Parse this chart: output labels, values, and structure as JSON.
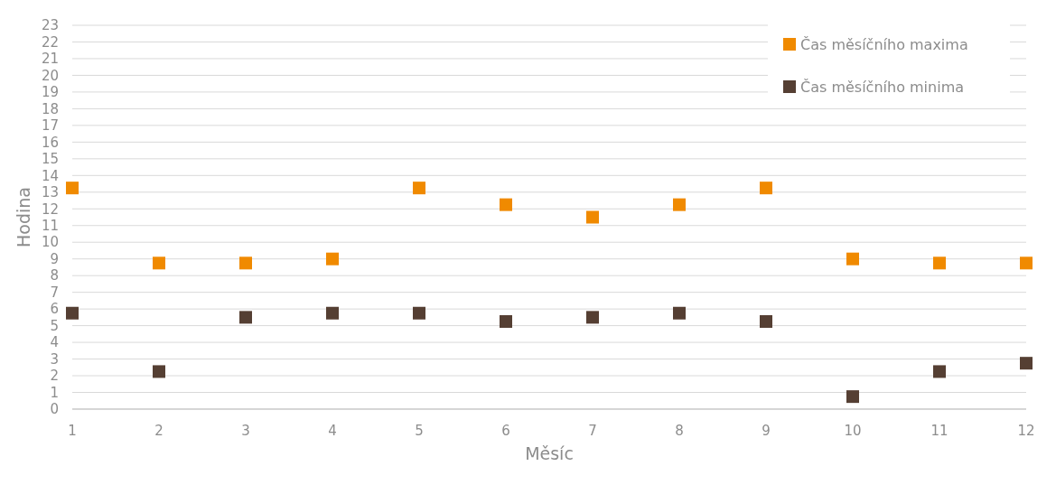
{
  "chart_data": {
    "type": "scatter",
    "xlabel": "Měsíc",
    "ylabel": "Hodina",
    "x": [
      1,
      2,
      3,
      4,
      5,
      6,
      7,
      8,
      9,
      10,
      11,
      12
    ],
    "xlim": [
      1,
      12
    ],
    "xticks": [
      1,
      2,
      3,
      4,
      5,
      6,
      7,
      8,
      9,
      10,
      11,
      12
    ],
    "ylim": [
      0,
      23
    ],
    "yticks": [
      0,
      1,
      2,
      3,
      4,
      5,
      6,
      7,
      8,
      9,
      10,
      11,
      12,
      13,
      14,
      15,
      16,
      17,
      18,
      19,
      20,
      21,
      22,
      23
    ],
    "grid": "y",
    "legend": "top right",
    "marker": "square",
    "series": [
      {
        "name": "Čas měsíčního maxima",
        "color": "#f08a00",
        "values": [
          13.25,
          8.75,
          8.75,
          9,
          13.25,
          12.25,
          11.5,
          12.25,
          13.25,
          9,
          8.75,
          8.75
        ]
      },
      {
        "name": "Čas měsíčního minima",
        "color": "#553f33",
        "values": [
          5.75,
          2.25,
          5.5,
          5.75,
          5.75,
          5.25,
          5.5,
          5.75,
          5.25,
          0.75,
          2.25,
          2.75
        ]
      }
    ]
  }
}
